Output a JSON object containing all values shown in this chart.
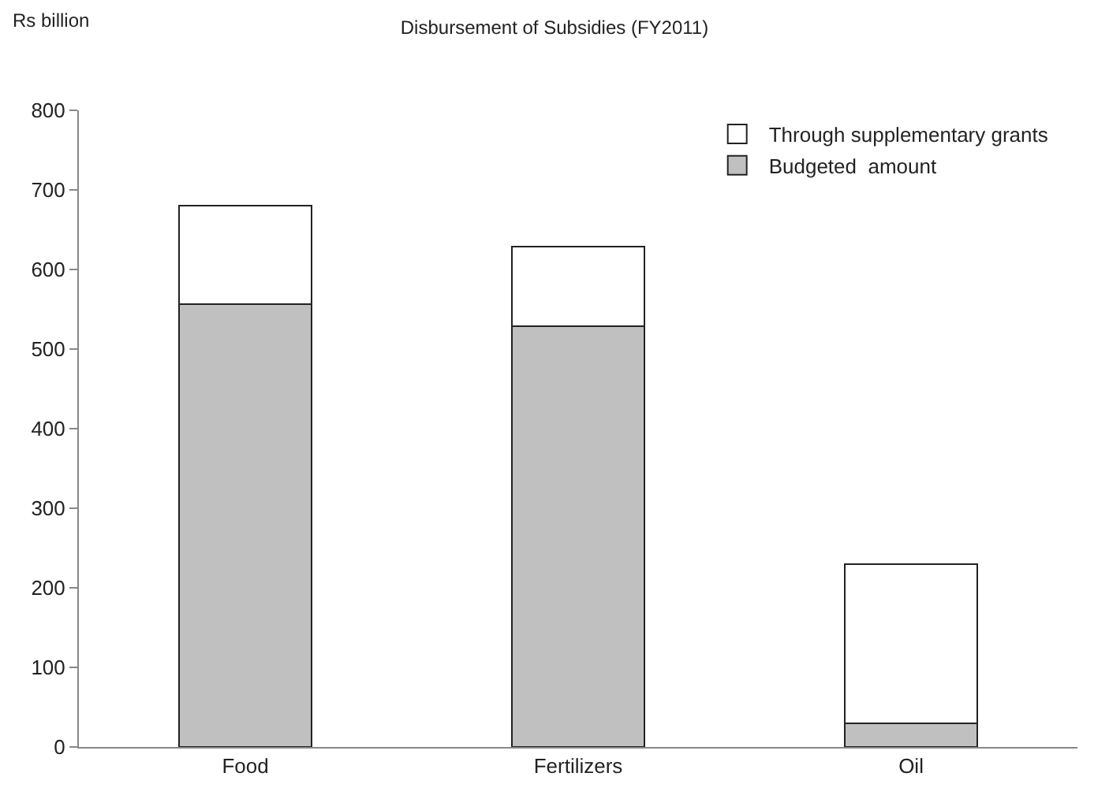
{
  "chart_data": {
    "type": "bar",
    "title": "Disbursement of Subsidies (FY2011)",
    "ylabel": "Rs billion",
    "categories": [
      "Food",
      "Fertilizers",
      "Oil"
    ],
    "stacked": true,
    "series": [
      {
        "name": "Budgeted  amount",
        "color": "#c0c0c0",
        "values": [
          556,
          529,
          30
        ]
      },
      {
        "name": "Through supplementary grants",
        "color": "#ffffff",
        "values": [
          124,
          100,
          200
        ]
      }
    ],
    "ylim": [
      0,
      800
    ],
    "yticks": [
      0,
      100,
      200,
      300,
      400,
      500,
      600,
      700,
      800
    ],
    "grid": false,
    "legend": "top right"
  }
}
